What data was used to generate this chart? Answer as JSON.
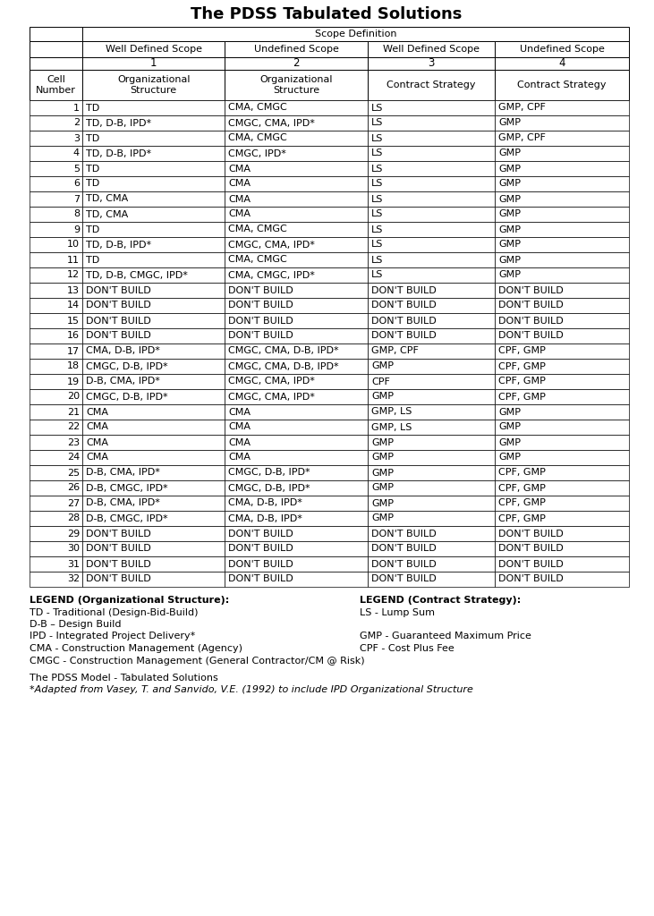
{
  "title": "The PDSS Tabulated Solutions",
  "scope_definition_label": "Scope Definition",
  "col_headers_row1": [
    "Well Defined Scope",
    "Undefined Scope",
    "Well Defined Scope",
    "Undefined Scope"
  ],
  "col_headers_row2": [
    "1",
    "2",
    "3",
    "4"
  ],
  "col_headers_row3": [
    "Organizational\nStructure",
    "Organizational\nStructure",
    "Contract Strategy",
    "Contract Strategy"
  ],
  "cell_col_header": "Cell\nNumber",
  "rows": [
    [
      1,
      "TD",
      "CMA, CMGC",
      "LS",
      "GMP, CPF"
    ],
    [
      2,
      "TD, D-B, IPD*",
      "CMGC, CMA, IPD*",
      "LS",
      "GMP"
    ],
    [
      3,
      "TD",
      "CMA, CMGC",
      "LS",
      "GMP, CPF"
    ],
    [
      4,
      "TD, D-B, IPD*",
      "CMGC, IPD*",
      "LS",
      "GMP"
    ],
    [
      5,
      "TD",
      "CMA",
      "LS",
      "GMP"
    ],
    [
      6,
      "TD",
      "CMA",
      "LS",
      "GMP"
    ],
    [
      7,
      "TD, CMA",
      "CMA",
      "LS",
      "GMP"
    ],
    [
      8,
      "TD, CMA",
      "CMA",
      "LS",
      "GMP"
    ],
    [
      9,
      "TD",
      "CMA, CMGC",
      "LS",
      "GMP"
    ],
    [
      10,
      "TD, D-B, IPD*",
      "CMGC, CMA, IPD*",
      "LS",
      "GMP"
    ],
    [
      11,
      "TD",
      "CMA, CMGC",
      "LS",
      "GMP"
    ],
    [
      12,
      "TD, D-B, CMGC, IPD*",
      "CMA, CMGC, IPD*",
      "LS",
      "GMP"
    ],
    [
      13,
      "DON'T BUILD",
      "DON'T BUILD",
      "DON'T BUILD",
      "DON'T BUILD"
    ],
    [
      14,
      "DON'T BUILD",
      "DON'T BUILD",
      "DON'T BUILD",
      "DON'T BUILD"
    ],
    [
      15,
      "DON'T BUILD",
      "DON'T BUILD",
      "DON'T BUILD",
      "DON'T BUILD"
    ],
    [
      16,
      "DON'T BUILD",
      "DON'T BUILD",
      "DON'T BUILD",
      "DON'T BUILD"
    ],
    [
      17,
      "CMA, D-B, IPD*",
      "CMGC, CMA, D-B, IPD*",
      "GMP, CPF",
      "CPF, GMP"
    ],
    [
      18,
      "CMGC, D-B, IPD*",
      "CMGC, CMA, D-B, IPD*",
      "GMP",
      "CPF, GMP"
    ],
    [
      19,
      "D-B, CMA, IPD*",
      "CMGC, CMA, IPD*",
      "CPF",
      "CPF, GMP"
    ],
    [
      20,
      "CMGC, D-B, IPD*",
      "CMGC, CMA, IPD*",
      "GMP",
      "CPF, GMP"
    ],
    [
      21,
      "CMA",
      "CMA",
      "GMP, LS",
      "GMP"
    ],
    [
      22,
      "CMA",
      "CMA",
      "GMP, LS",
      "GMP"
    ],
    [
      23,
      "CMA",
      "CMA",
      "GMP",
      "GMP"
    ],
    [
      24,
      "CMA",
      "CMA",
      "GMP",
      "GMP"
    ],
    [
      25,
      "D-B, CMA, IPD*",
      "CMGC, D-B, IPD*",
      "GMP",
      "CPF, GMP"
    ],
    [
      26,
      "D-B, CMGC, IPD*",
      "CMGC, D-B, IPD*",
      "GMP",
      "CPF, GMP"
    ],
    [
      27,
      "D-B, CMA, IPD*",
      "CMA, D-B, IPD*",
      "GMP",
      "CPF, GMP"
    ],
    [
      28,
      "D-B, CMGC, IPD*",
      "CMA, D-B, IPD*",
      "GMP",
      "CPF, GMP"
    ],
    [
      29,
      "DON'T BUILD",
      "DON'T BUILD",
      "DON'T BUILD",
      "DON'T BUILD"
    ],
    [
      30,
      "DON'T BUILD",
      "DON'T BUILD",
      "DON'T BUILD",
      "DON'T BUILD"
    ],
    [
      31,
      "DON'T BUILD",
      "DON'T BUILD",
      "DON'T BUILD",
      "DON'T BUILD"
    ],
    [
      32,
      "DON'T BUILD",
      "DON'T BUILD",
      "DON'T BUILD",
      "DON'T BUILD"
    ]
  ],
  "legend_org": [
    [
      "LEGEND (Organizational Structure):",
      true
    ],
    [
      "TD - Traditional (Design-Bid-Build)",
      false
    ],
    [
      "D-B – Design Build",
      false
    ],
    [
      "IPD - Integrated Project Delivery*",
      false
    ],
    [
      "CMA - Construction Management (Agency)",
      false
    ],
    [
      "CMGC - Construction Management (General Contractor/CM @ Risk)",
      false
    ]
  ],
  "legend_contract": [
    [
      "LEGEND (Contract Strategy):",
      true
    ],
    [
      "LS - Lump Sum",
      false
    ],
    [
      "",
      false
    ],
    [
      "GMP - Guaranteed Maximum Price",
      false
    ],
    [
      "CPF - Cost Plus Fee",
      false
    ]
  ],
  "footer_lines": [
    [
      "The PDSS Model - Tabulated Solutions",
      false
    ],
    [
      "*Adapted from Vasey, T. and Sanvido, V.E. (1992) to include IPD Organizational Structure",
      false
    ]
  ],
  "bg_color": "#ffffff",
  "text_color": "#000000"
}
